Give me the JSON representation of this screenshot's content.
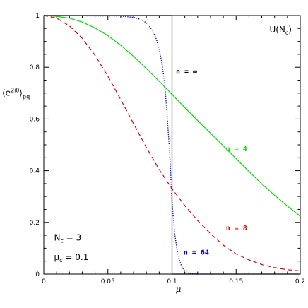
{
  "chart_data": {
    "type": "line",
    "xlabel": "μ",
    "ylabel": "⟨e",
    "ylabel_sup": "2iθ",
    "ylabel_close": "⟩",
    "ylabel_sub": "pq",
    "xlim": [
      0,
      0.2
    ],
    "ylim": [
      0,
      1
    ],
    "x_ticks": [
      0,
      0.05,
      0.1,
      0.15,
      0.2
    ],
    "x_tick_labels": [
      "0",
      "0.05",
      "0.1",
      "0.15",
      "0.2"
    ],
    "y_ticks": [
      0,
      0.2,
      0.4,
      0.6,
      0.8,
      1
    ],
    "y_tick_labels": [
      "0",
      "0.2",
      "0.4",
      "0.6",
      "0.8",
      "1"
    ],
    "grid": false,
    "annotations": {
      "group_prefix": "U(N",
      "group_sub": "c",
      "group_suffix": ")",
      "nc_label": "N",
      "nc_sub": "c",
      "nc_value": " = 3",
      "muc_label": "μ",
      "muc_sub": "c",
      "muc_value": " = 0.1"
    },
    "series": [
      {
        "name": "n = 4",
        "color": "#00dd00",
        "dash": "solid",
        "x": [
          0,
          0.01,
          0.02,
          0.03,
          0.04,
          0.05,
          0.06,
          0.07,
          0.08,
          0.09,
          0.1,
          0.11,
          0.12,
          0.13,
          0.14,
          0.15,
          0.16,
          0.17,
          0.18,
          0.19,
          0.2
        ],
        "y": [
          1.0,
          0.997,
          0.99,
          0.975,
          0.952,
          0.922,
          0.885,
          0.842,
          0.795,
          0.746,
          0.695,
          0.644,
          0.594,
          0.545,
          0.496,
          0.447,
          0.397,
          0.349,
          0.305,
          0.263,
          0.224
        ]
      },
      {
        "name": "n = 8",
        "color": "#dd0000",
        "dash": "dashed",
        "x": [
          0,
          0.01,
          0.02,
          0.03,
          0.04,
          0.05,
          0.06,
          0.07,
          0.08,
          0.09,
          0.1,
          0.11,
          0.12,
          0.13,
          0.14,
          0.15,
          0.16,
          0.17,
          0.18,
          0.19,
          0.2
        ],
        "y": [
          1.0,
          0.99,
          0.96,
          0.912,
          0.846,
          0.765,
          0.675,
          0.582,
          0.49,
          0.405,
          0.33,
          0.265,
          0.207,
          0.156,
          0.112,
          0.078,
          0.055,
          0.037,
          0.025,
          0.017,
          0.012
        ]
      },
      {
        "name": "n = 64",
        "color": "#0000cc",
        "dash": "dotted",
        "x": [
          0,
          0.06,
          0.07,
          0.075,
          0.08,
          0.085,
          0.088,
          0.09,
          0.092,
          0.094,
          0.096,
          0.098,
          0.1,
          0.102,
          0.104,
          0.106,
          0.108,
          0.11,
          0.112,
          0.115,
          0.12
        ],
        "y": [
          1.0,
          0.998,
          0.993,
          0.986,
          0.972,
          0.942,
          0.906,
          0.87,
          0.82,
          0.75,
          0.63,
          0.48,
          0.28,
          0.16,
          0.09,
          0.05,
          0.025,
          0.012,
          0.005,
          0.001,
          0.0
        ]
      },
      {
        "name": "n = ∞",
        "color": "#000000",
        "dash": "solid",
        "x": [
          0,
          0.1,
          0.1,
          0.2
        ],
        "y": [
          1,
          1,
          0,
          0
        ]
      }
    ],
    "series_label_positions": [
      {
        "series": 0,
        "x": 0.142,
        "y": 0.475
      },
      {
        "series": 1,
        "x": 0.142,
        "y": 0.17
      },
      {
        "series": 2,
        "x": 0.109,
        "y": 0.075
      },
      {
        "series": 3,
        "x": 0.103,
        "y": 0.775
      }
    ]
  }
}
